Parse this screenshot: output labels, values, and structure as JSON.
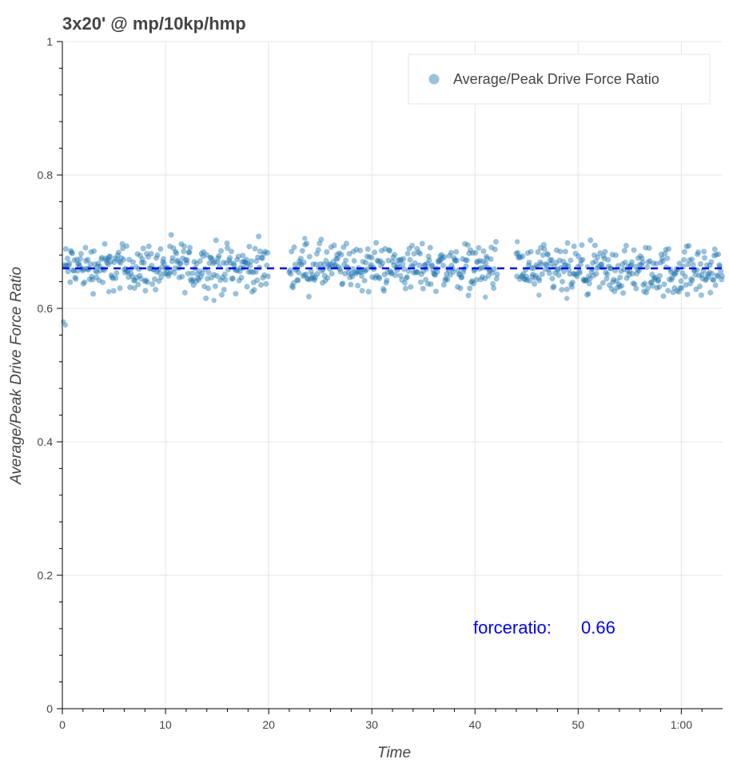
{
  "chart_data": {
    "type": "scatter",
    "title": "3x20' @ mp/10kp/hmp",
    "xlabel": "Time",
    "ylabel": "Average/Peak Drive Force Ratio",
    "xlim": [
      0,
      64
    ],
    "ylim": [
      0,
      1
    ],
    "x_ticks": [
      0,
      10,
      20,
      30,
      40,
      50,
      60
    ],
    "x_tick_labels": [
      "0",
      "10",
      "20",
      "30",
      "40",
      "50",
      "1:00"
    ],
    "y_ticks": [
      0,
      0.2,
      0.4,
      0.6,
      0.8,
      1
    ],
    "y_tick_labels": [
      "0",
      "0.2",
      "0.4",
      "0.6",
      "0.8",
      "1"
    ],
    "grid": true,
    "legend_position": "top-right",
    "series": [
      {
        "name": "Average/Peak Drive Force Ratio",
        "color": "#1f77b4",
        "segments": [
          {
            "x_start": 0.2,
            "x_end": 20.0,
            "step": 0.07,
            "center": 0.662,
            "spread": 0.028
          },
          {
            "x_start": 22.0,
            "x_end": 42.2,
            "step": 0.07,
            "center": 0.662,
            "spread": 0.028
          },
          {
            "x_start": 44.0,
            "x_end": 64.0,
            "step": 0.07,
            "center": 0.655,
            "spread": 0.03
          }
        ],
        "points": [
          [
            0.1,
            0.58
          ],
          [
            0.3,
            0.575
          ],
          [
            4.5,
            0.625
          ],
          [
            14.7,
            0.612
          ],
          [
            23.5,
            0.705
          ],
          [
            41.0,
            0.617
          ],
          [
            44.1,
            0.7
          ],
          [
            46.2,
            0.62
          ],
          [
            48.9,
            0.615
          ],
          [
            51.0,
            0.622
          ]
        ]
      }
    ],
    "reference_line": {
      "y": 0.66,
      "color": "#0000ff",
      "style": "dashed"
    },
    "annotation": {
      "label": "forceratio:",
      "value": "0.66",
      "x": 40,
      "y": 0.12,
      "color": "#0000ff"
    }
  }
}
